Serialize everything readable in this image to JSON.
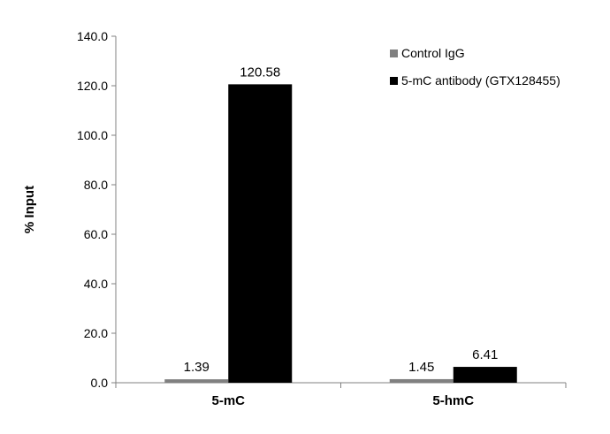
{
  "chart_data": {
    "type": "bar",
    "title": "",
    "xlabel": "",
    "ylabel": "% Input",
    "ylim": [
      0,
      140
    ],
    "yticks": [
      "0.0",
      "20.0",
      "40.0",
      "60.0",
      "80.0",
      "100.0",
      "120.0",
      "140.0"
    ],
    "categories": [
      "5-mC",
      "5-hmC"
    ],
    "series": [
      {
        "name": "Control IgG",
        "color": "#808080",
        "values": [
          1.39,
          1.45
        ],
        "labels": [
          "1.39",
          "1.45"
        ]
      },
      {
        "name": "5-mC antibody (GTX128455)",
        "color": "#000000",
        "values": [
          120.58,
          6.41
        ],
        "labels": [
          "120.58",
          "6.41"
        ]
      }
    ],
    "legend_position": "top-right",
    "grid": false
  }
}
